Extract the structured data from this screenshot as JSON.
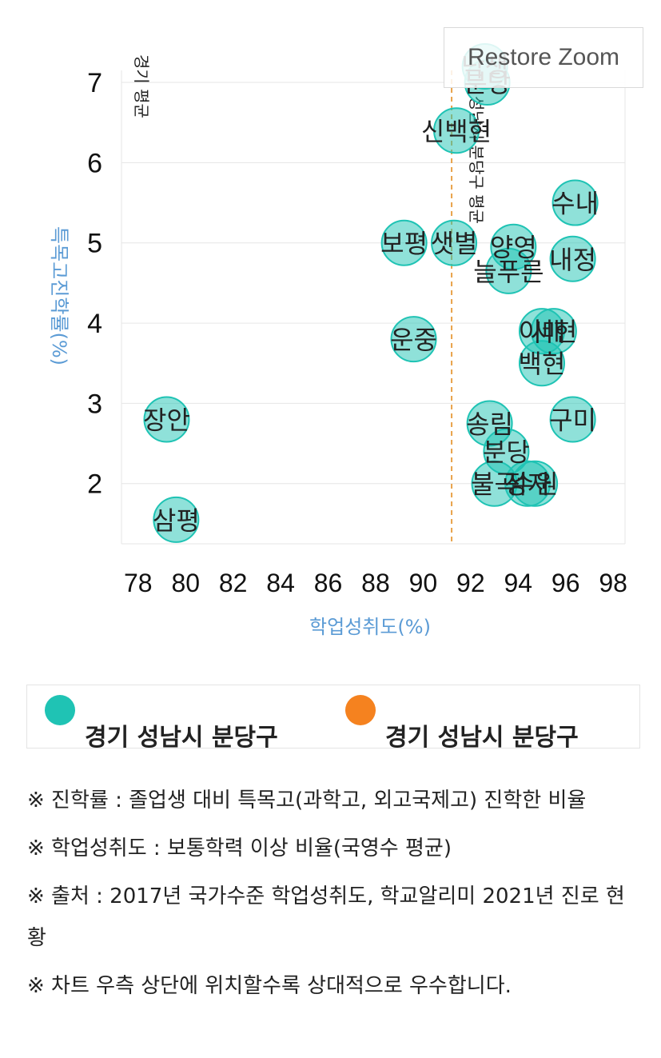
{
  "restore_zoom_label": "Restore Zoom",
  "chart_data": {
    "type": "scatter",
    "xlabel": "학업성취도(%)",
    "ylabel": "특목고진학률(%)",
    "xlim": [
      77.3,
      98.5
    ],
    "ylim": [
      1.25,
      7.15
    ],
    "x_ticks": [
      78,
      80,
      82,
      84,
      86,
      88,
      90,
      92,
      94,
      96,
      98
    ],
    "y_ticks": [
      2,
      3,
      4,
      5,
      6,
      7
    ],
    "grid": true,
    "bubble_color": "#1fc3b4",
    "series": [
      {
        "name": "경기 성남시 분당구",
        "points": [
          {
            "label": "장안",
            "x": 79.2,
            "y": 2.8
          },
          {
            "label": "삼평",
            "x": 79.6,
            "y": 1.55
          },
          {
            "label": "운중",
            "x": 89.6,
            "y": 3.8
          },
          {
            "label": "보평",
            "x": 89.2,
            "y": 5.0
          },
          {
            "label": "샛별",
            "x": 91.3,
            "y": 5.0
          },
          {
            "label": "신백현",
            "x": 91.4,
            "y": 6.4
          },
          {
            "label": "낙생",
            "x": 92.6,
            "y": 7.2
          },
          {
            "label": "분당",
            "x": 92.7,
            "y": 7.0
          },
          {
            "label": "양영",
            "x": 93.8,
            "y": 4.95
          },
          {
            "label": "늘푸른",
            "x": 93.6,
            "y": 4.65
          },
          {
            "label": "수내",
            "x": 96.4,
            "y": 5.5
          },
          {
            "label": "내정",
            "x": 96.3,
            "y": 4.8
          },
          {
            "label": "이매",
            "x": 95.0,
            "y": 3.9
          },
          {
            "label": "서현",
            "x": 95.5,
            "y": 3.9
          },
          {
            "label": "백현",
            "x": 95.0,
            "y": 3.5
          },
          {
            "label": "구미",
            "x": 96.3,
            "y": 2.8
          },
          {
            "label": "송림",
            "x": 92.8,
            "y": 2.75
          },
          {
            "label": "분당",
            "x": 93.5,
            "y": 2.4
          },
          {
            "label": "불곡",
            "x": 93.0,
            "y": 2.0
          },
          {
            "label": "정자",
            "x": 94.4,
            "y": 2.0
          },
          {
            "label": "수원",
            "x": 94.7,
            "y": 2.0
          }
        ]
      }
    ],
    "reference_lines": [
      {
        "axis": "x",
        "value": 77.3,
        "label": "경기 평균"
      },
      {
        "axis": "x",
        "value": 91.2,
        "label": "성남시 분당구 평균",
        "color": "#e8a24a"
      }
    ]
  },
  "legend": [
    {
      "label": "경기 성남시 분당구",
      "color": "#1fc3b4"
    },
    {
      "label": "경기 성남시 분당구",
      "color": "#f5821f"
    }
  ],
  "notes": [
    "※ 진학률 : 졸업생 대비 특목고(과학고, 외고국제고) 진학한 비율",
    "※ 학업성취도 : 보통학력 이상 비율(국영수 평균)",
    "※ 출처 : 2017년 국가수준 학업성취도, 학교알리미 2021년 진로 현황",
    "※ 차트 우측 상단에 위치할수록 상대적으로 우수합니다."
  ]
}
